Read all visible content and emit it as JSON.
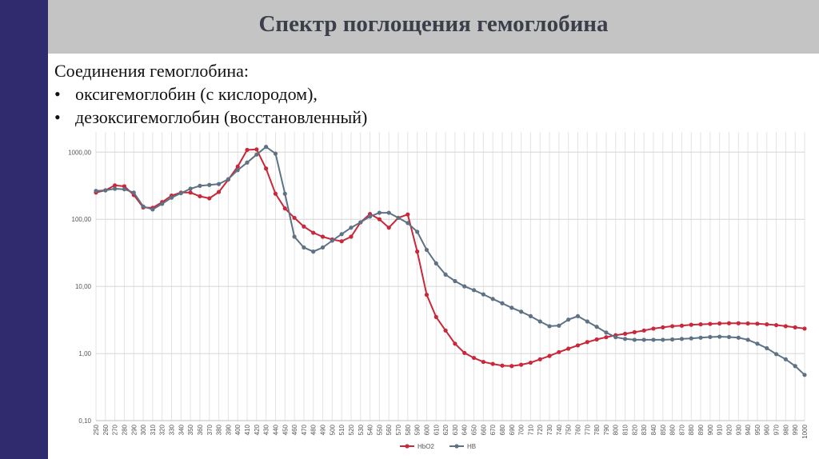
{
  "slide": {
    "title": "Спектр поглощения гемоглобина",
    "intro": "Соединения гемоглобина:",
    "bullets": [
      "оксигемоглобин (с кислородом),",
      "дезоксигемоглобин (восстановленный)"
    ],
    "bullet_symbol": "•"
  },
  "chart_data": {
    "type": "line",
    "y_scale": "log",
    "ylim": [
      0.1,
      2000
    ],
    "y_ticks": [
      {
        "value": 0.1,
        "label": "0,10"
      },
      {
        "value": 1,
        "label": "1,00"
      },
      {
        "value": 10,
        "label": "10,00"
      },
      {
        "value": 100,
        "label": "100,00"
      },
      {
        "value": 1000,
        "label": "1000,00"
      }
    ],
    "grid": true,
    "legend_position": "bottom",
    "x": [
      250,
      260,
      270,
      280,
      290,
      300,
      310,
      320,
      330,
      340,
      350,
      360,
      370,
      380,
      390,
      400,
      410,
      420,
      430,
      440,
      450,
      460,
      470,
      480,
      490,
      500,
      510,
      520,
      530,
      540,
      550,
      560,
      570,
      580,
      590,
      600,
      610,
      620,
      630,
      640,
      650,
      660,
      670,
      680,
      690,
      700,
      710,
      720,
      730,
      740,
      750,
      760,
      770,
      780,
      790,
      800,
      810,
      820,
      830,
      840,
      850,
      860,
      870,
      880,
      890,
      900,
      910,
      920,
      930,
      940,
      950,
      960,
      970,
      980,
      990,
      1000
    ],
    "series": [
      {
        "name": "HbO2",
        "color": "#c8283a",
        "values": [
          250,
          270,
          320,
          310,
          230,
          150,
          148,
          180,
          225,
          250,
          250,
          220,
          205,
          255,
          390,
          610,
          1080,
          1100,
          570,
          240,
          145,
          105,
          78,
          63,
          55,
          50,
          47,
          55,
          90,
          120,
          100,
          75,
          105,
          118,
          33,
          7.5,
          3.5,
          2.2,
          1.4,
          1.02,
          0.86,
          0.75,
          0.7,
          0.66,
          0.65,
          0.68,
          0.73,
          0.82,
          0.92,
          1.05,
          1.18,
          1.32,
          1.48,
          1.62,
          1.75,
          1.87,
          1.97,
          2.08,
          2.2,
          2.35,
          2.45,
          2.55,
          2.6,
          2.68,
          2.72,
          2.76,
          2.8,
          2.82,
          2.82,
          2.8,
          2.78,
          2.72,
          2.65,
          2.55,
          2.45,
          2.35
        ]
      },
      {
        "name": "HB",
        "color": "#5e7285",
        "values": [
          265,
          270,
          285,
          280,
          250,
          155,
          140,
          170,
          210,
          245,
          285,
          315,
          325,
          335,
          395,
          540,
          700,
          920,
          1200,
          950,
          240,
          55,
          38,
          33,
          38,
          48,
          60,
          75,
          90,
          110,
          125,
          125,
          105,
          88,
          65,
          35,
          22,
          15,
          12,
          10,
          8.8,
          7.6,
          6.5,
          5.6,
          4.8,
          4.2,
          3.6,
          3.0,
          2.55,
          2.6,
          3.2,
          3.6,
          3.0,
          2.5,
          2.05,
          1.75,
          1.65,
          1.6,
          1.6,
          1.6,
          1.6,
          1.62,
          1.65,
          1.68,
          1.72,
          1.76,
          1.78,
          1.76,
          1.72,
          1.6,
          1.4,
          1.2,
          0.98,
          0.82,
          0.65,
          0.48
        ]
      }
    ]
  }
}
